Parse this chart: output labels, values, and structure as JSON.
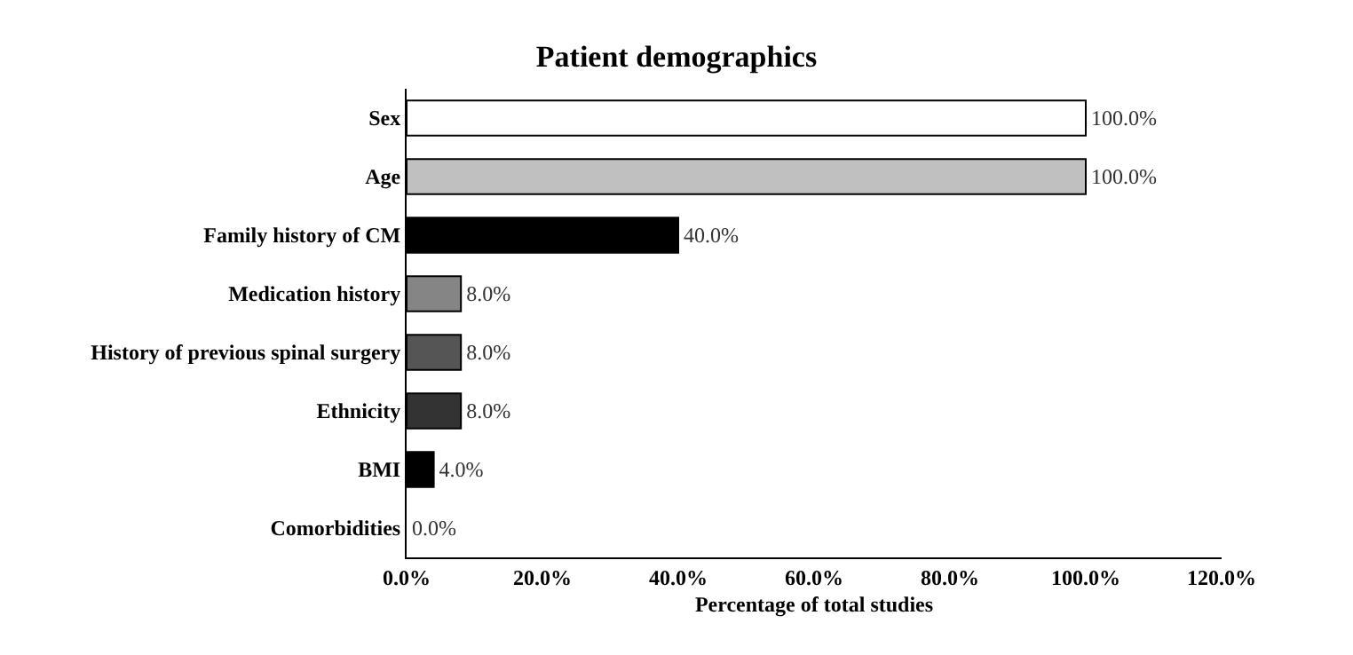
{
  "chart_data": {
    "type": "bar",
    "orientation": "horizontal",
    "title": "Patient demographics",
    "xlabel": "Percentage of total studies",
    "categories": [
      "Sex",
      "Age",
      "Family history of CM",
      "Medication history",
      "History of previous spinal surgery",
      "Ethnicity",
      "BMI",
      "Comorbidities"
    ],
    "values": [
      100,
      100,
      40,
      8,
      8,
      8,
      4,
      0
    ],
    "colors": [
      "#ffffff",
      "#c0c0c0",
      "#000000",
      "#858585",
      "#555555",
      "#333333",
      "#000000",
      "#ffffff"
    ],
    "value_labels": [
      "100.0%",
      "100.0%",
      "40.0%",
      "8.0%",
      "8.0%",
      "8.0%",
      "4.0%",
      "0.0%"
    ],
    "xlim": [
      0,
      120
    ],
    "xticks": [
      {
        "value": 0,
        "label": "0.0%"
      },
      {
        "value": 20,
        "label": "20.0%"
      },
      {
        "value": 40,
        "label": "40.0%"
      },
      {
        "value": 60,
        "label": "60.0%"
      },
      {
        "value": 80,
        "label": "80.0%"
      },
      {
        "value": 100,
        "label": "100.0%"
      },
      {
        "value": 120,
        "label": "120.0%"
      }
    ]
  }
}
